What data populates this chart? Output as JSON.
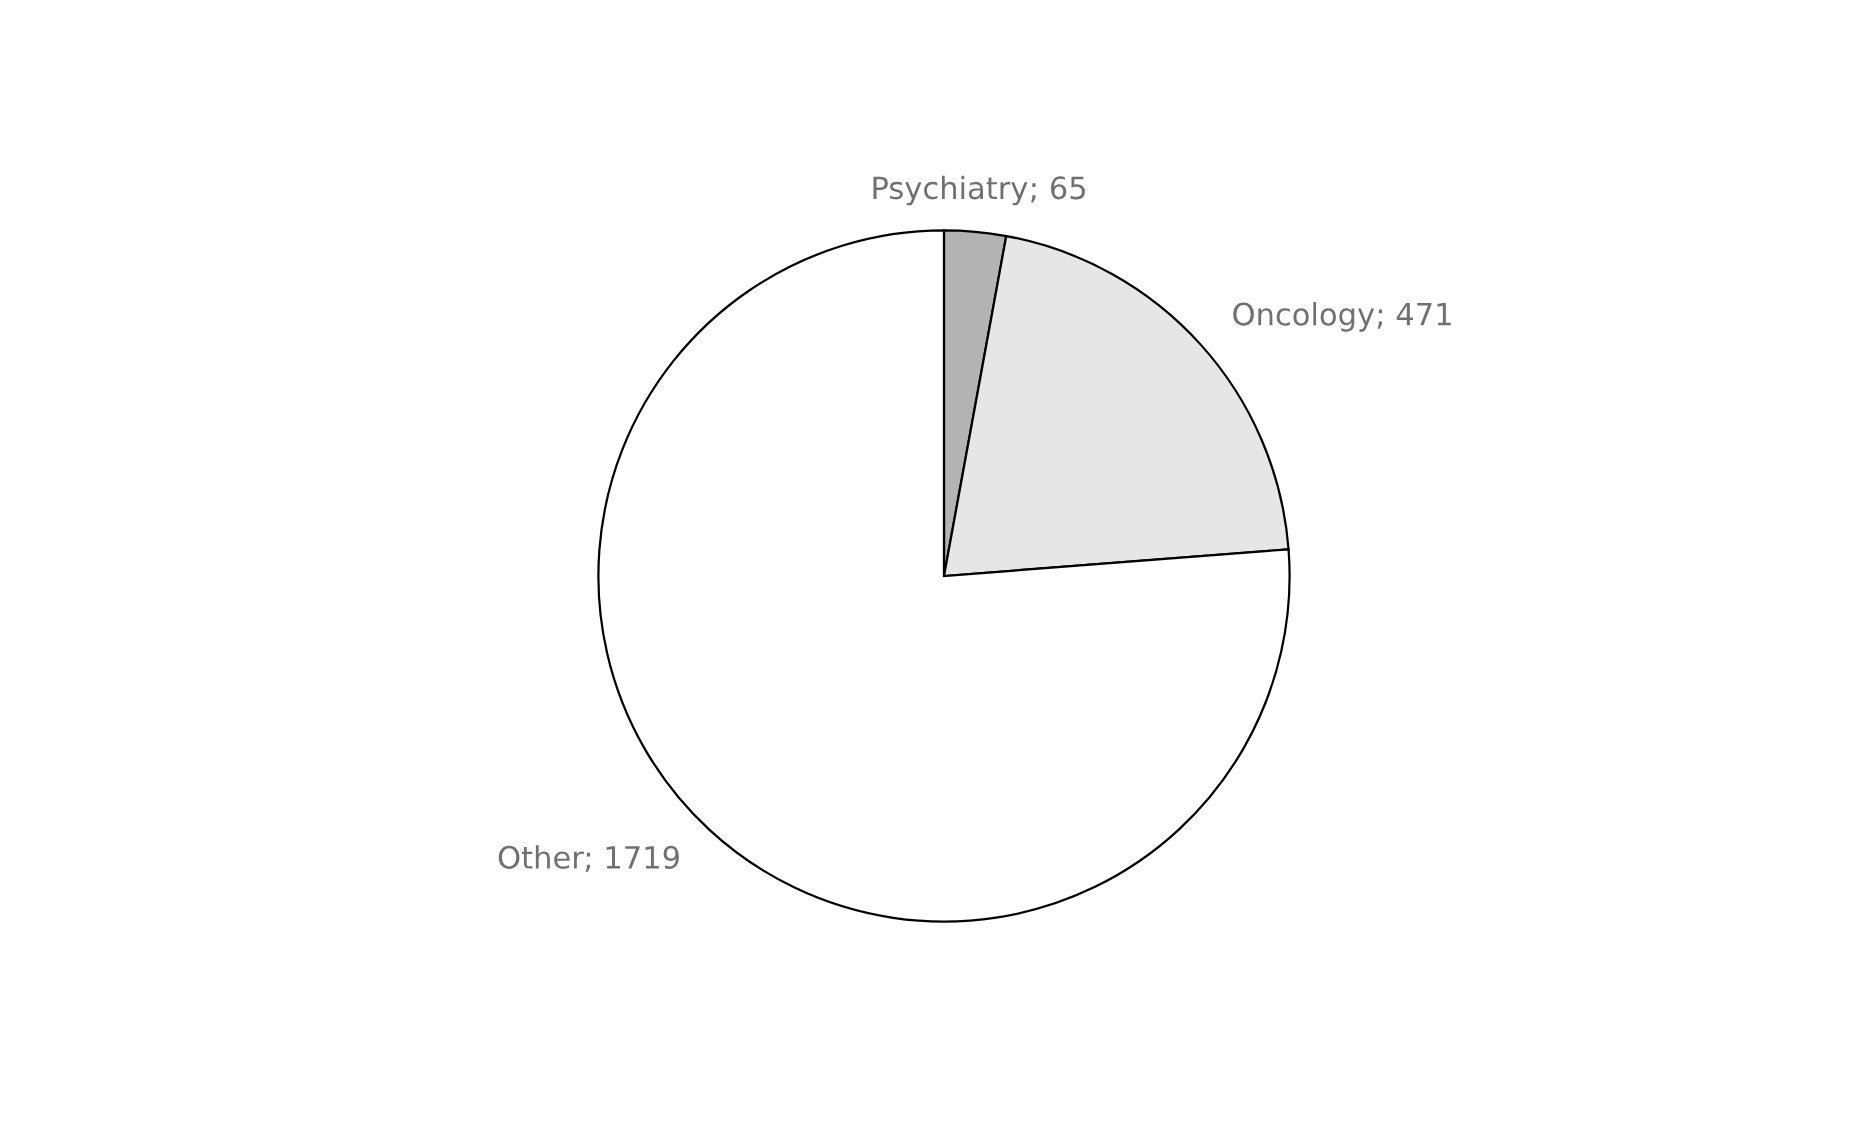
{
  "chart_data": {
    "type": "pie",
    "categories": [
      "Psychiatry",
      "Oncology",
      "Other"
    ],
    "values": [
      65,
      471,
      1719
    ],
    "colors": [
      "#b3b3b3",
      "#e6e6e6",
      "#ffffff"
    ],
    "value_labels": [
      "; 65",
      "; 471",
      "; 1719"
    ]
  }
}
